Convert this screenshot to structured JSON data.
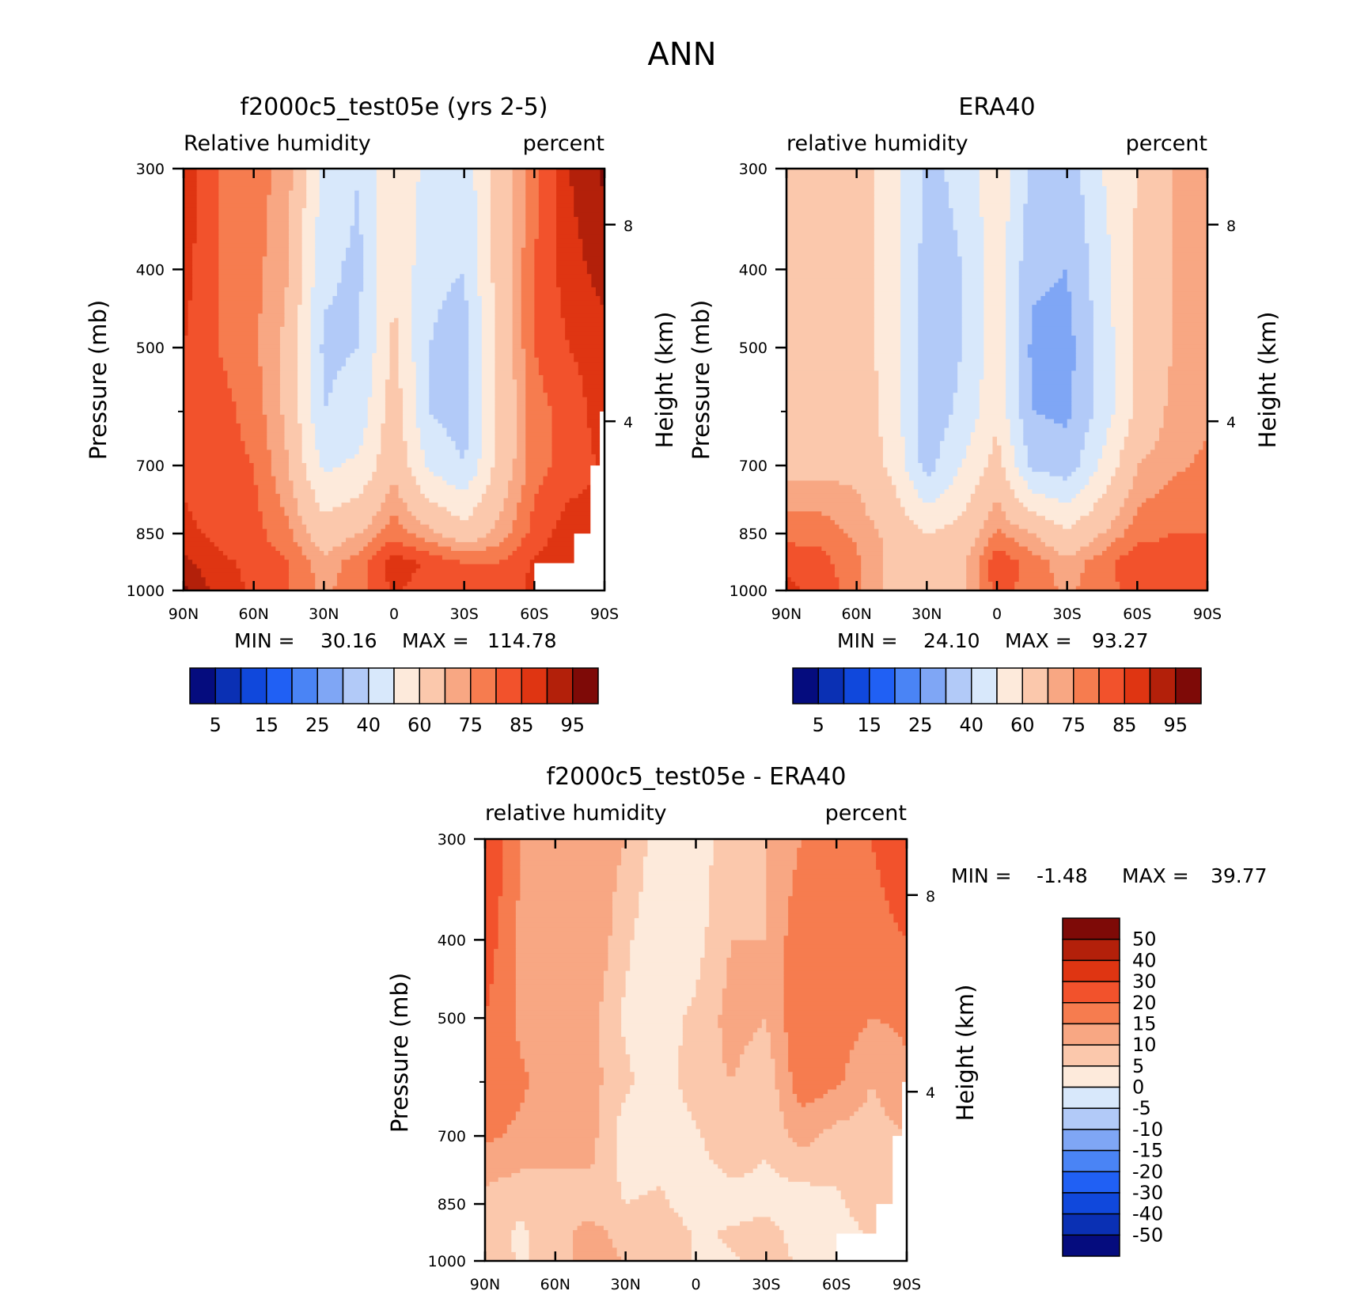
{
  "main_title": "ANN",
  "chart_data": [
    {
      "type": "heatmap",
      "title": "f2000c5_test05e (yrs 2-5)",
      "subtitle_left": "Relative humidity",
      "subtitle_right": "percent",
      "ylabel": "Pressure (mb)",
      "ylabel_right": "Height (km)",
      "x_ticks": [
        "90N",
        "60N",
        "30N",
        "0",
        "30S",
        "60S",
        "90S"
      ],
      "y_ticks": [
        "300",
        "400",
        "500",
        "700",
        "850",
        "1000"
      ],
      "y_right_ticks": [
        "8",
        "4"
      ],
      "min_label": "MIN =",
      "min_value": "30.16",
      "max_label": "MAX =",
      "max_value": "114.78",
      "colorbar_labels": [
        "5",
        "15",
        "25",
        "40",
        "60",
        "75",
        "85",
        "95"
      ],
      "colors": [
        "#050c7e",
        "#0a30b4",
        "#1048dc",
        "#2060f4",
        "#4a84f5",
        "#7fa6f5",
        "#b2caf8",
        "#d8e8fb",
        "#fdeadb",
        "#fbc8ac",
        "#f8a783",
        "#f67c4f",
        "#f2522c",
        "#df3512",
        "#b3200a",
        "#7e0a07"
      ],
      "lat": [
        90,
        75,
        60,
        45,
        30,
        15,
        0,
        -15,
        -30,
        -45,
        -60,
        -75,
        -90
      ],
      "p": [
        300,
        400,
        500,
        600,
        700,
        850,
        925,
        1000
      ],
      "values": [
        [
          88,
          80,
          78,
          72,
          48,
          40,
          60,
          46,
          44,
          65,
          78,
          90,
          96
        ],
        [
          87,
          80,
          77,
          70,
          42,
          38,
          60,
          42,
          40,
          65,
          80,
          88,
          92
        ],
        [
          85,
          80,
          76,
          68,
          38,
          40,
          62,
          40,
          36,
          64,
          80,
          85,
          88
        ],
        [
          84,
          82,
          78,
          68,
          40,
          44,
          66,
          40,
          35,
          62,
          78,
          82,
          88
        ],
        [
          84,
          82,
          80,
          70,
          48,
          52,
          68,
          48,
          40,
          64,
          78,
          82,
          86
        ],
        [
          86,
          84,
          82,
          76,
          65,
          70,
          78,
          72,
          65,
          72,
          82,
          88,
          86
        ],
        [
          92,
          86,
          84,
          80,
          72,
          78,
          88,
          84,
          80,
          80,
          86,
          88,
          86
        ],
        [
          96,
          88,
          84,
          80,
          74,
          78,
          86,
          82,
          82,
          82,
          86,
          86,
          84
        ]
      ],
      "missing_region": "lower right corner (60S to 90S, near surface)"
    },
    {
      "type": "heatmap",
      "title": "ERA40",
      "subtitle_left": "relative humidity",
      "subtitle_right": "percent",
      "ylabel": "Pressure (mb)",
      "ylabel_right": "Height (km)",
      "x_ticks": [
        "90N",
        "60N",
        "30N",
        "0",
        "30S",
        "60S",
        "90S"
      ],
      "y_ticks": [
        "300",
        "400",
        "500",
        "700",
        "850",
        "1000"
      ],
      "y_right_ticks": [
        "8",
        "4"
      ],
      "min_label": "MIN =",
      "min_value": "24.10",
      "max_label": "MAX =",
      "max_value": "93.27",
      "colorbar_labels": [
        "5",
        "15",
        "25",
        "40",
        "60",
        "75",
        "85",
        "95"
      ],
      "colors": [
        "#050c7e",
        "#0a30b4",
        "#1048dc",
        "#2060f4",
        "#4a84f5",
        "#7fa6f5",
        "#b2caf8",
        "#d8e8fb",
        "#fdeadb",
        "#fbc8ac",
        "#f8a783",
        "#f67c4f",
        "#f2522c",
        "#df3512",
        "#b3200a",
        "#7e0a07"
      ],
      "lat": [
        90,
        75,
        60,
        45,
        30,
        15,
        0,
        -15,
        -30,
        -45,
        -60,
        -75,
        -90
      ],
      "p": [
        300,
        400,
        500,
        600,
        700,
        850,
        925,
        1000
      ],
      "values": [
        [
          62,
          65,
          66,
          55,
          38,
          42,
          58,
          38,
          34,
          50,
          60,
          70,
          72
        ],
        [
          64,
          66,
          66,
          55,
          36,
          40,
          56,
          32,
          30,
          46,
          62,
          70,
          72
        ],
        [
          65,
          66,
          66,
          55,
          34,
          40,
          56,
          28,
          26,
          44,
          62,
          70,
          72
        ],
        [
          66,
          66,
          66,
          56,
          34,
          42,
          58,
          30,
          28,
          44,
          62,
          72,
          74
        ],
        [
          68,
          68,
          68,
          58,
          36,
          50,
          64,
          38,
          34,
          52,
          70,
          74,
          76
        ],
        [
          78,
          78,
          74,
          68,
          60,
          64,
          76,
          70,
          62,
          70,
          78,
          80,
          80
        ],
        [
          84,
          82,
          76,
          68,
          64,
          68,
          84,
          78,
          72,
          78,
          84,
          82,
          82
        ],
        [
          86,
          84,
          76,
          68,
          64,
          68,
          82,
          78,
          74,
          78,
          82,
          82,
          84
        ]
      ]
    },
    {
      "type": "heatmap",
      "title": "f2000c5_test05e - ERA40",
      "subtitle_left": "relative humidity",
      "subtitle_right": "percent",
      "ylabel": "Pressure (mb)",
      "ylabel_right": "Height (km)",
      "x_ticks": [
        "90N",
        "60N",
        "30N",
        "0",
        "30S",
        "60S",
        "90S"
      ],
      "y_ticks": [
        "300",
        "400",
        "500",
        "700",
        "850",
        "1000"
      ],
      "y_right_ticks": [
        "8",
        "4"
      ],
      "min_label": "MIN =",
      "min_value": "-1.48",
      "max_label": "MAX =",
      "max_value": "39.77",
      "colorbar_labels": [
        "50",
        "40",
        "30",
        "20",
        "15",
        "10",
        "5",
        "0",
        "-5",
        "-10",
        "-15",
        "-20",
        "-30",
        "-40",
        "-50"
      ],
      "colors": [
        "#050c7e",
        "#0a30b4",
        "#1048dc",
        "#2060f4",
        "#4a84f5",
        "#7fa6f5",
        "#b2caf8",
        "#d8e8fb",
        "#fdeadb",
        "#fbc8ac",
        "#f8a783",
        "#f67c4f",
        "#f2522c",
        "#df3512",
        "#b3200a",
        "#7e0a07"
      ],
      "lat": [
        90,
        75,
        60,
        45,
        30,
        15,
        0,
        -15,
        -30,
        -45,
        -60,
        -75,
        -90
      ],
      "p": [
        300,
        400,
        500,
        600,
        700,
        850,
        925,
        1000
      ],
      "values": [
        [
          26,
          15,
          12,
          14,
          10,
          2,
          2,
          8,
          10,
          15,
          18,
          20,
          24
        ],
        [
          23,
          14,
          11,
          15,
          6,
          0.5,
          3,
          10,
          10,
          19,
          18,
          18,
          20
        ],
        [
          20,
          14,
          10,
          12,
          4,
          3,
          6,
          12,
          10,
          20,
          18,
          15,
          16
        ],
        [
          18,
          16,
          12,
          12,
          6,
          2,
          8,
          10,
          7,
          18,
          16,
          10,
          14
        ],
        [
          16,
          14,
          12,
          12,
          2,
          2,
          4,
          10,
          6,
          12,
          8,
          8,
          10
        ],
        [
          8,
          6,
          8,
          8,
          5,
          6,
          2,
          2,
          3,
          2,
          4,
          8,
          6
        ],
        [
          8,
          4,
          8,
          12,
          8,
          10,
          4,
          6,
          8,
          2,
          2,
          6,
          4
        ],
        [
          10,
          4,
          8,
          12,
          10,
          10,
          4,
          4,
          8,
          4,
          2,
          4,
          0
        ]
      ],
      "missing_region": "lower right corner (60S to 90S, near surface)"
    }
  ]
}
